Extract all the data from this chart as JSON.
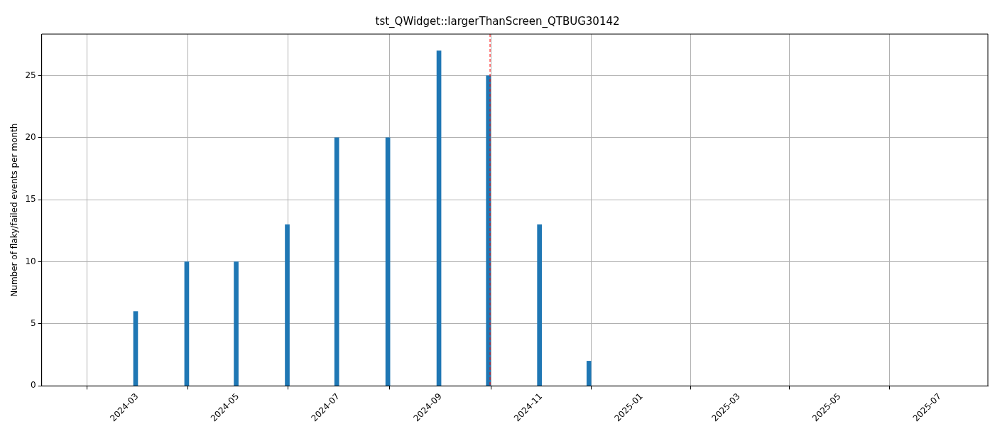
{
  "chart_data": {
    "type": "bar",
    "title": "tst_QWidget::largerThanScreen_QTBUG30142",
    "ylabel": "Number of flaky/failed events per month",
    "x": [
      "2024-02-29",
      "2024-03-31",
      "2024-04-30",
      "2024-05-31",
      "2024-06-30",
      "2024-07-31",
      "2024-08-31",
      "2024-09-30",
      "2024-10-31",
      "2024-11-30"
    ],
    "values": [
      6,
      10,
      10,
      13,
      20,
      20,
      27,
      25,
      13,
      2
    ],
    "color": "#1f77b4",
    "xlim": [
      "2024-01-03",
      "2025-07-30"
    ],
    "xticks": [
      {
        "value": "2024-03-01",
        "label": "2024-03"
      },
      {
        "value": "2024-05-01",
        "label": "2024-05"
      },
      {
        "value": "2024-07-01",
        "label": "2024-07"
      },
      {
        "value": "2024-09-01",
        "label": "2024-09"
      },
      {
        "value": "2024-11-01",
        "label": "2024-11"
      },
      {
        "value": "2025-01-01",
        "label": "2025-01"
      },
      {
        "value": "2025-03-01",
        "label": "2025-03"
      },
      {
        "value": "2025-05-01",
        "label": "2025-05"
      },
      {
        "value": "2025-07-01",
        "label": "2025-07"
      }
    ],
    "ylim": [
      0,
      28.35
    ],
    "yticks": [
      0,
      5,
      10,
      15,
      20,
      25
    ],
    "grid": true,
    "legend": false,
    "ref_lines": [
      {
        "axis": "x",
        "value": "2024-10-01",
        "color": "#ff0000",
        "line_style": "dashed"
      }
    ]
  }
}
